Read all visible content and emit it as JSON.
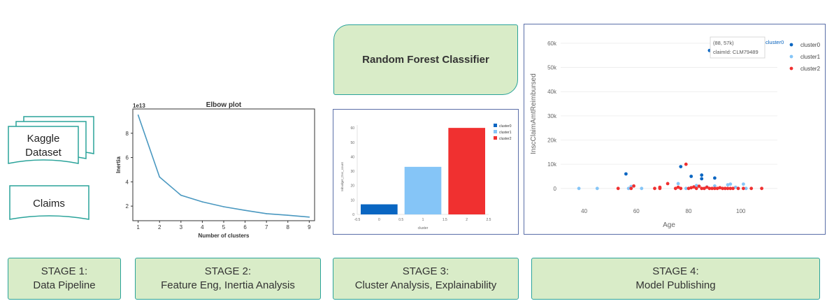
{
  "sources": {
    "dataset_label_line1": "Kaggle",
    "dataset_label_line2": "Dataset",
    "claims_label": "Claims"
  },
  "stages": [
    {
      "line1": "STAGE 1:",
      "line2": "Data Pipeline"
    },
    {
      "line1": "STAGE 2:",
      "line2": "Feature Eng, Inertia Analysis"
    },
    {
      "line1": "STAGE 3:",
      "line2": "Cluster Analysis, Explainability"
    },
    {
      "line1": "STAGE 4:",
      "line2": "Model Publishing"
    }
  ],
  "classifier_label": "Random Forest Classifier",
  "colors": {
    "stage_fill": "#d9ecc8",
    "stage_border": "#2aa39a",
    "cluster0": "#0a66c2",
    "cluster1": "#85c5f7",
    "cluster2": "#f03030",
    "elbow_line": "#4a98c0"
  },
  "chart_data": [
    {
      "type": "line",
      "title": "Elbow plot",
      "xlabel": "Number of clusters",
      "ylabel": "Inertia",
      "scale_note": "1e13",
      "x": [
        1,
        2,
        3,
        4,
        5,
        6,
        7,
        8,
        9
      ],
      "y": [
        9.5,
        4.4,
        2.9,
        2.35,
        1.95,
        1.65,
        1.38,
        1.25,
        1.1
      ],
      "xticks": [
        "1",
        "2",
        "3",
        "4",
        "5",
        "6",
        "7",
        "8",
        "9"
      ],
      "yticks": [
        "2",
        "4",
        "6",
        "8"
      ],
      "xlim": [
        0.75,
        9.25
      ],
      "ylim": [
        0.8,
        10.0
      ],
      "grid": false
    },
    {
      "type": "bar",
      "categories": [
        "cluster0",
        "cluster1",
        "cluster2"
      ],
      "x": [
        0,
        1,
        2
      ],
      "values": [
        7,
        33,
        60
      ],
      "xlabel": "cluster",
      "ylabel": "Inbudget_Doc_count",
      "xticks": [
        "-0.5",
        "0",
        "0.5",
        "1",
        "1.5",
        "2",
        "2.5"
      ],
      "yticks": [
        "0",
        "10",
        "20",
        "30",
        "40",
        "50",
        "60"
      ],
      "xlim": [
        -0.5,
        2.5
      ],
      "ylim": [
        0,
        62
      ],
      "legend": [
        "cluster0",
        "cluster1",
        "cluster2"
      ],
      "legend_position": "top-right"
    },
    {
      "type": "scatter",
      "xlabel": "Age",
      "ylabel": "InscClaimAmtReimbursed",
      "xticks": [
        "40",
        "60",
        "80",
        "100"
      ],
      "yticks": [
        "0",
        "10k",
        "20k",
        "30k",
        "40k",
        "50k",
        "60k"
      ],
      "xlim": [
        31,
        114
      ],
      "ylim": [
        -1500,
        62000
      ],
      "legend": [
        "cluster0",
        "cluster1",
        "cluster2"
      ],
      "legend_position": "top-right",
      "grid": true,
      "tooltip": {
        "line1": "(88, 57k)",
        "line2": "claimId: CLM79489",
        "series": "cluster0"
      },
      "series": [
        {
          "name": "cluster0",
          "points": [
            [
              88,
              57000
            ],
            [
              56,
              6000
            ],
            [
              77,
              9000
            ],
            [
              81,
              5000
            ],
            [
              85,
              5500
            ],
            [
              85,
              4000
            ],
            [
              90,
              4300
            ]
          ]
        },
        {
          "name": "cluster1",
          "points": [
            [
              38,
              0
            ],
            [
              45,
              0
            ],
            [
              57,
              0
            ],
            [
              62,
              0
            ],
            [
              58,
              800
            ],
            [
              76,
              2000
            ],
            [
              79,
              0
            ],
            [
              83,
              1200
            ],
            [
              86,
              0
            ],
            [
              87,
              600
            ],
            [
              90,
              1000
            ],
            [
              94,
              0
            ],
            [
              95,
              1500
            ],
            [
              96,
              1800
            ],
            [
              98,
              500
            ],
            [
              101,
              1800
            ],
            [
              99,
              0
            ],
            [
              102,
              0
            ]
          ]
        },
        {
          "name": "cluster2",
          "points": [
            [
              53,
              0
            ],
            [
              58,
              0
            ],
            [
              59,
              1000
            ],
            [
              67,
              0
            ],
            [
              69,
              500
            ],
            [
              69,
              0
            ],
            [
              72,
              2000
            ],
            [
              75,
              0
            ],
            [
              76,
              500
            ],
            [
              77,
              0
            ],
            [
              79,
              10000
            ],
            [
              80,
              0
            ],
            [
              81,
              300
            ],
            [
              82,
              600
            ],
            [
              83,
              0
            ],
            [
              84,
              900
            ],
            [
              85,
              0
            ],
            [
              86,
              0
            ],
            [
              87,
              500
            ],
            [
              88,
              0
            ],
            [
              89,
              0
            ],
            [
              90,
              0
            ],
            [
              91,
              0
            ],
            [
              92,
              300
            ],
            [
              93,
              0
            ],
            [
              94,
              0
            ],
            [
              95,
              0
            ],
            [
              96,
              0
            ],
            [
              97,
              0
            ],
            [
              99,
              0
            ],
            [
              101,
              0
            ],
            [
              104,
              0
            ],
            [
              108,
              0
            ]
          ]
        }
      ]
    }
  ]
}
